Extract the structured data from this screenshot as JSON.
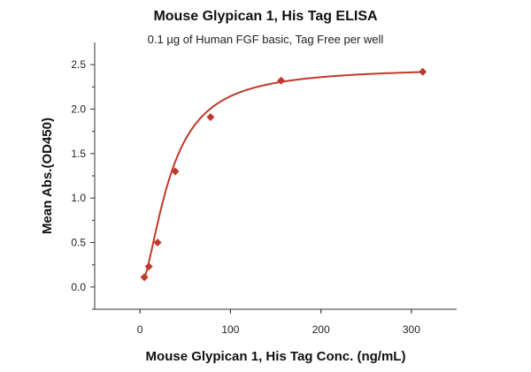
{
  "chart_data": {
    "type": "scatter",
    "title": "Mouse Glypican 1, His Tag ELISA",
    "subtitle": "0.1 µg of Human FGF basic, Tag Free per well",
    "xlabel": "Mouse Glypican 1, His Tag Conc. (ng/mL)",
    "ylabel": "Mean Abs.(OD450)",
    "xlim": [
      -50,
      350
    ],
    "ylim": [
      -0.25,
      2.75
    ],
    "xticks": [
      0,
      100,
      200,
      300
    ],
    "yticks": [
      0.0,
      0.5,
      1.0,
      1.5,
      2.0,
      2.5
    ],
    "xtick_labels": [
      "0",
      "100",
      "200",
      "300"
    ],
    "ytick_labels": [
      "0.0",
      "0.5",
      "1.0",
      "1.5",
      "2.0",
      "2.5"
    ],
    "grid": false,
    "colors": {
      "series": "#c0392b"
    },
    "series": [
      {
        "points": [
          {
            "x": 4.9,
            "y": 0.11
          },
          {
            "x": 9.8,
            "y": 0.23
          },
          {
            "x": 19.5,
            "y": 0.5
          },
          {
            "x": 39,
            "y": 1.3
          },
          {
            "x": 78,
            "y": 1.91
          },
          {
            "x": 156,
            "y": 2.32
          },
          {
            "x": 312.5,
            "y": 2.42
          }
        ]
      }
    ],
    "fit_curve": {
      "bottom": 0.0,
      "top": 2.47,
      "ec50": 33,
      "hill": 1.7
    }
  }
}
